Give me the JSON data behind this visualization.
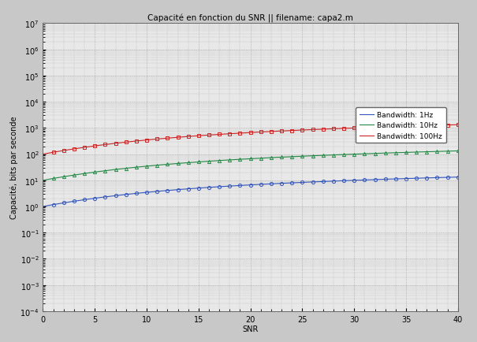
{
  "title": "Capacité en fonction du SNR || filename: capa2.m",
  "xlabel": "SNR",
  "ylabel": "Capacité, bits par seconde",
  "xlim": [
    0,
    40
  ],
  "ylim_exp": [
    -4,
    7
  ],
  "xticks": [
    0,
    5,
    10,
    15,
    20,
    25,
    30,
    35,
    40
  ],
  "bandwidths": [
    1,
    10,
    100
  ],
  "legend_labels": [
    "Bandwidth: 1Hz",
    "Bandwidth: 10Hz",
    "Bandwidth: 100Hz"
  ],
  "colors": [
    "#3355bb",
    "#228844",
    "#cc2222"
  ],
  "marker_styles": [
    "o",
    "^",
    "s"
  ],
  "background_color": "#c8c8c8",
  "plot_bg_color": "#e8e8e8",
  "grid_color": "#999999",
  "title_fontsize": 7.5,
  "axis_fontsize": 7,
  "tick_fontsize": 7,
  "legend_fontsize": 6.5,
  "linewidth": 0.8,
  "markersize": 3.0,
  "marker_step": 1
}
